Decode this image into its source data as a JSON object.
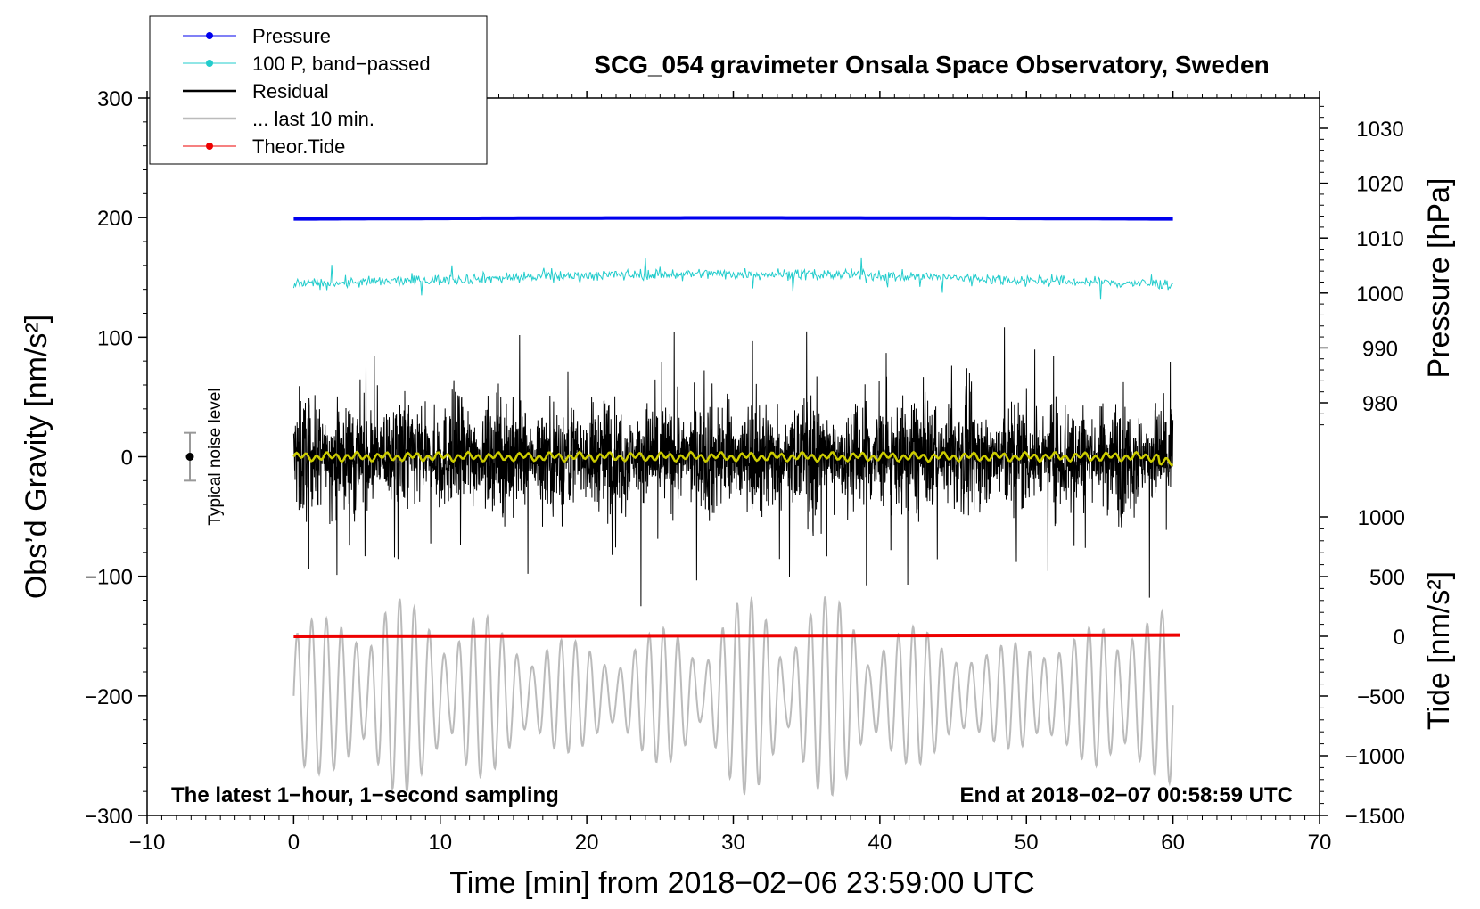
{
  "chart_data": {
    "type": "line",
    "title": "SCG_054 gravimeter Onsala Space Observatory, Sweden",
    "xlabel": "Time [min] from 2018−02−06 23:59:00 UTC",
    "ylabel_left": "Obs’d Gravity [nm/s²]",
    "ylabel_pressure": "Pressure [hPa]",
    "ylabel_tide": "Tide [nm/s²]",
    "xlim": [
      -10,
      70
    ],
    "ylim_left": [
      -300,
      300
    ],
    "x_ticks": [
      "−10",
      "0",
      "10",
      "20",
      "30",
      "40",
      "50",
      "60",
      "70"
    ],
    "y_left_ticks": [
      "300",
      "200",
      "100",
      "0",
      "−100",
      "−200",
      "−300"
    ],
    "pressure_ticks": [
      "1030",
      "1020",
      "1010",
      "1000",
      "990",
      "980"
    ],
    "tide_ticks": [
      "1000",
      "500",
      "0",
      "−500",
      "−1000",
      "−1500"
    ],
    "noise_label": "Typical noise level",
    "noise_level": 20,
    "annotation_left": "The latest 1−hour, 1−second sampling",
    "annotation_right": "End at 2018−02−07 00:58:59 UTC",
    "legend": [
      {
        "label": "Pressure",
        "color": "#0000ee",
        "marker": true
      },
      {
        "label": "100 P, band−passed",
        "color": "#22cccc",
        "marker": true
      },
      {
        "label": "Residual",
        "color": "#000000",
        "marker": false
      },
      {
        "label": "... last 10 min.",
        "color": "#bbbbbb",
        "marker": false
      },
      {
        "label": "Theor.Tide",
        "color": "#ee0000",
        "marker": true
      }
    ],
    "series": [
      {
        "name": "Pressure",
        "axis": "pressure_hPa",
        "x_range": [
          0,
          60
        ],
        "level": 1013.5,
        "variation": 0.3,
        "color": "#0000ee"
      },
      {
        "name": "100 P, band−passed",
        "axis": "gravity_nm_s2",
        "x_range": [
          0,
          60
        ],
        "level": 148,
        "amplitude": 8,
        "color": "#22cccc"
      },
      {
        "name": "Residual",
        "axis": "gravity_nm_s2",
        "x_range": [
          0,
          60
        ],
        "level": 0,
        "amplitude": 110,
        "color": "#000000"
      },
      {
        "name": "Residual (smoothed)",
        "axis": "gravity_nm_s2",
        "x_range": [
          0,
          60
        ],
        "level": 0,
        "amplitude": 4,
        "color": "#cccc00"
      },
      {
        "name": "... last 10 min.",
        "axis": "gravity_nm_s2",
        "x_range": [
          0,
          60
        ],
        "level": -200,
        "amplitude": 80,
        "color": "#bbbbbb"
      },
      {
        "name": "Theor.Tide",
        "axis": "tide_nm_s2",
        "x_range": [
          0,
          60.5
        ],
        "start": 0,
        "end": 10,
        "color": "#ee0000"
      }
    ],
    "pressure_axis_range": [
      980,
      1030
    ],
    "tide_axis_range": [
      -1500,
      1000
    ]
  }
}
